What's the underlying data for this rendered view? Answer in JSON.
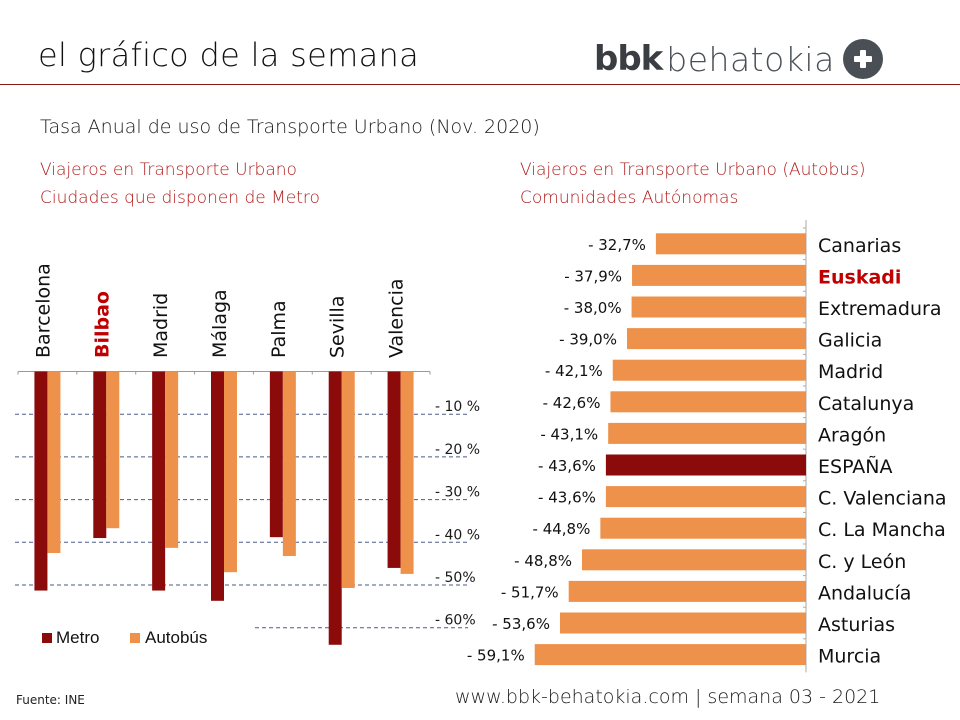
{
  "header": {
    "title": "el gráfico de la semana",
    "logo_bold": "bbk",
    "logo_light": "behatokia",
    "logo_icon": "plus-circle-icon"
  },
  "subtitle": "Tasa Anual de uso de Transporte Urbano (Nov. 2020)",
  "left_panel": {
    "line1": "Viajeros en Transporte Urbano",
    "line2": "Ciudades que disponen de Metro"
  },
  "right_panel": {
    "line1": "Viajeros en Transporte Urbano (Autobus)",
    "line2": "Comunidades Autónomas"
  },
  "colors": {
    "metro": "#8b0a0a",
    "autobus": "#ee914a",
    "highlight": "#c00000",
    "grid": "#4a5a8a",
    "accent_rule": "#8c1a1a"
  },
  "chart_data": [
    {
      "type": "bar",
      "orientation": "vertical",
      "title": "Viajeros en Transporte Urbano - Ciudades que disponen de Metro",
      "categories": [
        "Barcelona",
        "Bilbao",
        "Madrid",
        "Málaga",
        "Palma",
        "Sevilla",
        "Valencia"
      ],
      "highlight_category": "Bilbao",
      "series": [
        {
          "name": "Metro",
          "values": [
            -51.3,
            -39.0,
            -51.3,
            -53.7,
            -38.8,
            -64.0,
            -46.0
          ]
        },
        {
          "name": "Autobús",
          "values": [
            -42.5,
            -36.7,
            -41.3,
            -47.0,
            -43.2,
            -50.7,
            -47.4
          ]
        }
      ],
      "ylim": [
        -70,
        0
      ],
      "y_ticks": [
        -10,
        -20,
        -30,
        -40,
        -50,
        -60
      ],
      "y_tick_labels": [
        "- 10 %",
        "- 20 %",
        "- 30 %",
        "- 40 %",
        "- 50%",
        "- 60%"
      ],
      "grid": true,
      "legend": [
        "Metro",
        "Autobús"
      ],
      "legend_position": "bottom-left",
      "xlabel": "",
      "ylabel": ""
    },
    {
      "type": "bar",
      "orientation": "horizontal",
      "title": "Viajeros en Transporte Urbano (Autobus) - Comunidades Autónomas",
      "categories": [
        "Canarias",
        "Euskadi",
        "Extremadura",
        "Galicia",
        "Madrid",
        "Catalunya",
        "Aragón",
        "ESPAÑA",
        "C. Valenciana",
        "C. La Mancha",
        "C. y León",
        "Andalucía",
        "Asturias",
        "Murcia"
      ],
      "values": [
        -32.7,
        -37.9,
        -38.0,
        -39.0,
        -42.1,
        -42.6,
        -43.1,
        -43.6,
        -43.6,
        -44.8,
        -48.8,
        -51.7,
        -53.6,
        -59.1
      ],
      "data_labels": [
        "- 32,7%",
        "- 37,9%",
        "- 38,0%",
        "- 39,0%",
        "- 42,1%",
        "- 42,6%",
        "- 43,1%",
        "- 43,6%",
        "- 43,6%",
        "- 44,8%",
        "- 48,8%",
        "- 51,7%",
        "- 53,6%",
        "- 59,1%"
      ],
      "highlight_label": "Euskadi",
      "highlight_bar": "ESPAÑA",
      "xlim": [
        -70,
        0
      ],
      "grid": false,
      "xlabel": "",
      "ylabel": ""
    }
  ],
  "footer": {
    "source": "Fuente:  INE",
    "right": "www.bbk-behatokia.com | semana 03 - 2021"
  }
}
